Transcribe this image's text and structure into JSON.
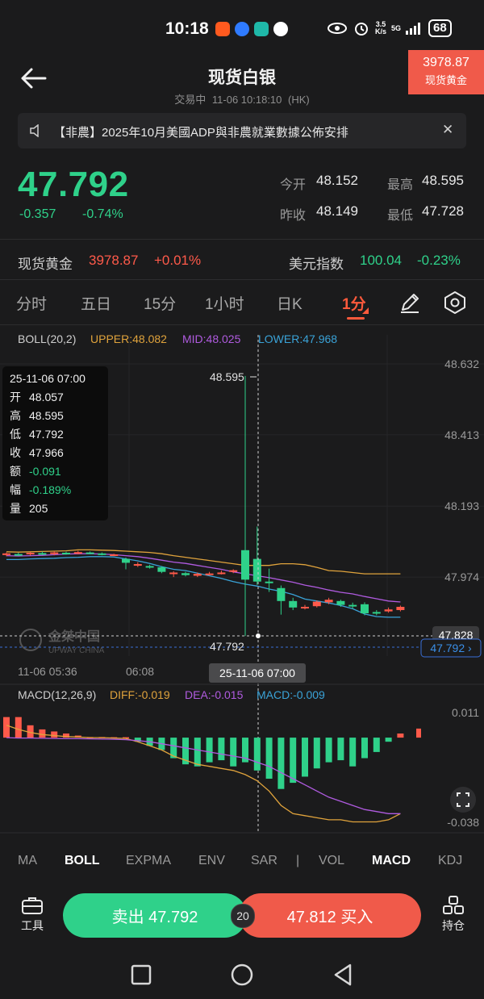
{
  "status_bar": {
    "time": "10:18",
    "net_speed_value": "3.5",
    "net_speed_unit": "K/s",
    "network": "5G",
    "battery": "68",
    "icons": [
      "eye-icon",
      "alarm-icon",
      "signal-icon"
    ]
  },
  "header": {
    "title": "现货白银",
    "trade_status": "交易中",
    "timestamp": "11-06 10:18:10",
    "zone": "(HK)",
    "gold_badge": {
      "price": "3978.87",
      "label": "现货黄金"
    }
  },
  "notice": {
    "text": "【非農】2025年10月美國ADP與非農就業數據公佈安排"
  },
  "quote": {
    "price": "47.792",
    "change": "-0.357",
    "change_pct": "-0.74%",
    "open_label": "今开",
    "open": "48.152",
    "high_label": "最高",
    "high": "48.595",
    "prev_close_label": "昨收",
    "prev_close": "48.149",
    "low_label": "最低",
    "low": "47.728"
  },
  "related": {
    "gold_label": "现货黄金",
    "gold_price": "3978.87",
    "gold_change": "+0.01%",
    "usd_label": "美元指数",
    "usd_price": "100.04",
    "usd_change": "-0.23%"
  },
  "timeframe_tabs": [
    "分时",
    "五日",
    "15分",
    "1小时",
    "日K",
    "1分"
  ],
  "active_timeframe": "1分",
  "chart_data": {
    "type": "candlestick",
    "boll": {
      "label": "BOLL(20,2)",
      "upper_label": "UPPER:48.082",
      "mid_label": "MID:48.025",
      "lower_label": "LOWER:47.968",
      "upper": [
        48.052,
        48.051,
        48.052,
        48.053,
        48.054,
        48.055,
        48.058,
        48.058,
        48.057,
        48.056,
        48.054,
        48.052,
        48.05,
        48.046,
        48.04,
        48.035,
        48.03,
        48.025,
        48.02,
        48.015,
        48.01,
        48.01,
        48.01,
        48.015,
        48.015,
        48.012,
        48.004,
        47.994,
        47.992,
        47.988,
        47.984,
        47.984,
        47.984,
        47.984
      ],
      "mid": [
        48.04,
        48.039,
        48.04,
        48.041,
        48.043,
        48.045,
        48.046,
        48.046,
        48.045,
        48.043,
        48.04,
        48.037,
        48.032,
        48.026,
        48.02,
        48.016,
        48.01,
        48.004,
        47.998,
        47.99,
        47.984,
        47.978,
        47.972,
        47.965,
        47.958,
        47.949,
        47.942,
        47.934,
        47.927,
        47.922,
        47.914,
        47.907,
        47.9,
        47.897
      ],
      "lower": [
        48.028,
        48.028,
        48.03,
        48.031,
        48.032,
        48.034,
        48.035,
        48.037,
        48.037,
        48.036,
        48.03,
        48.024,
        48.016,
        48.006,
        47.998,
        47.994,
        47.986,
        47.978,
        47.97,
        47.96,
        47.952,
        47.946,
        47.937,
        47.93,
        47.92,
        47.906,
        47.9,
        47.894,
        47.886,
        47.876,
        47.86,
        47.852,
        47.85,
        47.85
      ]
    },
    "y_ticks": [
      "48.632",
      "48.413",
      "48.193",
      "47.974"
    ],
    "ylim": [
      47.755,
      48.632
    ],
    "x_ticks": [
      "11-06 05:36",
      "06:08"
    ],
    "marker_high": "48.595",
    "marker_low": "47.792",
    "crosshair_price": "47.828",
    "current_price_tag": "47.792 ›",
    "crosshair_time": "25-11-06 07:00",
    "candles": [
      {
        "o": 48.043,
        "c": 48.047,
        "h": 48.05,
        "l": 48.038
      },
      {
        "o": 48.045,
        "c": 48.043,
        "h": 48.049,
        "l": 48.04
      },
      {
        "o": 48.044,
        "c": 48.049,
        "h": 48.052,
        "l": 48.04
      },
      {
        "o": 48.048,
        "c": 48.045,
        "h": 48.053,
        "l": 48.042
      },
      {
        "o": 48.045,
        "c": 48.05,
        "h": 48.054,
        "l": 48.041
      },
      {
        "o": 48.049,
        "c": 48.046,
        "h": 48.052,
        "l": 48.043
      },
      {
        "o": 48.047,
        "c": 48.051,
        "h": 48.055,
        "l": 48.044
      },
      {
        "o": 48.05,
        "c": 48.047,
        "h": 48.053,
        "l": 48.044
      },
      {
        "o": 48.047,
        "c": 48.045,
        "h": 48.05,
        "l": 48.041
      },
      {
        "o": 48.043,
        "c": 48.044,
        "h": 48.046,
        "l": 48.039
      },
      {
        "o": 48.03,
        "c": 48.018,
        "h": 48.034,
        "l": 47.998
      },
      {
        "o": 48.012,
        "c": 48.014,
        "h": 48.02,
        "l": 48.005
      },
      {
        "o": 48.008,
        "c": 48.006,
        "h": 48.012,
        "l": 48.0
      },
      {
        "o": 48.004,
        "c": 47.99,
        "h": 48.008,
        "l": 47.986
      },
      {
        "o": 47.986,
        "c": 47.988,
        "h": 47.992,
        "l": 47.974
      },
      {
        "o": 47.986,
        "c": 47.98,
        "h": 47.99,
        "l": 47.976
      },
      {
        "o": 47.978,
        "c": 47.984,
        "h": 47.988,
        "l": 47.974
      },
      {
        "o": 47.982,
        "c": 47.985,
        "h": 47.99,
        "l": 47.98
      },
      {
        "o": 47.984,
        "c": 47.988,
        "h": 47.994,
        "l": 47.982
      },
      {
        "o": 47.99,
        "c": 47.995,
        "h": 47.998,
        "l": 47.986
      },
      {
        "o": 48.057,
        "c": 47.966,
        "h": 48.595,
        "l": 47.792
      },
      {
        "o": 48.03,
        "c": 47.96,
        "h": 48.13,
        "l": 47.95
      },
      {
        "o": 47.96,
        "c": 47.958,
        "h": 48.0,
        "l": 47.928
      },
      {
        "o": 47.94,
        "c": 47.9,
        "h": 47.948,
        "l": 47.858
      },
      {
        "o": 47.9,
        "c": 47.88,
        "h": 47.91,
        "l": 47.872
      },
      {
        "o": 47.878,
        "c": 47.882,
        "h": 47.888,
        "l": 47.874
      },
      {
        "o": 47.884,
        "c": 47.898,
        "h": 47.902,
        "l": 47.88
      },
      {
        "o": 47.896,
        "c": 47.904,
        "h": 47.91,
        "l": 47.89
      },
      {
        "o": 47.9,
        "c": 47.888,
        "h": 47.904,
        "l": 47.882
      },
      {
        "o": 47.888,
        "c": 47.884,
        "h": 47.895,
        "l": 47.876
      },
      {
        "o": 47.89,
        "c": 47.862,
        "h": 47.896,
        "l": 47.856
      },
      {
        "o": 47.866,
        "c": 47.864,
        "h": 47.872,
        "l": 47.856
      },
      {
        "o": 47.868,
        "c": 47.874,
        "h": 47.88,
        "l": 47.864
      },
      {
        "o": 47.872,
        "c": 47.882,
        "h": 47.886,
        "l": 47.868
      }
    ],
    "tooltip": [
      {
        "label": "25-11-06 07:00",
        "value": ""
      },
      {
        "label": "开",
        "value": "48.057"
      },
      {
        "label": "高",
        "value": "48.595"
      },
      {
        "label": "低",
        "value": "47.792"
      },
      {
        "label": "收",
        "value": "47.966"
      },
      {
        "label": "额",
        "value": "-0.091"
      },
      {
        "label": "幅",
        "value": "-0.189%"
      },
      {
        "label": "量",
        "value": "205"
      }
    ],
    "watermark": "金桀中国",
    "watermark_sub": "UPWAY CHINA",
    "macd": {
      "label": "MACD(12,26,9)",
      "diff_label": "DIFF:-0.019",
      "dea_label": "DEA:-0.015",
      "macd_label": "MACD:-0.009",
      "y_ticks": [
        "0.011",
        "-0.038"
      ],
      "ylim": [
        -0.042,
        0.013
      ],
      "hist": [
        0.01,
        0.01,
        0.006,
        0.004,
        0.003,
        0.002,
        0.001,
        0.0003,
        0.0003,
        0.0002,
        0.0002,
        -0.002,
        -0.004,
        -0.006,
        -0.01,
        -0.013,
        -0.014,
        -0.012,
        -0.011,
        -0.014,
        -0.012,
        -0.016,
        -0.02,
        -0.025,
        -0.022,
        -0.019,
        -0.015,
        -0.012,
        -0.011,
        -0.014,
        -0.01,
        -0.007,
        -0.002,
        0.002
      ],
      "diff": [
        0.006,
        0.004,
        0.0025,
        0.0015,
        0.001,
        0.0005,
        0.0003,
        0.0,
        0.0,
        -0.0002,
        -0.0004,
        -0.002,
        -0.004,
        -0.006,
        -0.009,
        -0.011,
        -0.013,
        -0.014,
        -0.015,
        -0.016,
        -0.018,
        -0.021,
        -0.026,
        -0.033,
        -0.037,
        -0.038,
        -0.039,
        -0.04,
        -0.04,
        -0.041,
        -0.041,
        -0.041,
        -0.04,
        -0.037
      ],
      "dea": [
        0.0,
        -0.0002,
        -0.0002,
        -0.0003,
        -0.0004,
        -0.0005,
        -0.0005,
        -0.0006,
        -0.0007,
        -0.0008,
        -0.001,
        -0.0015,
        -0.002,
        -0.003,
        -0.004,
        -0.005,
        -0.006,
        -0.007,
        -0.008,
        -0.009,
        -0.01,
        -0.012,
        -0.014,
        -0.017,
        -0.02,
        -0.023,
        -0.026,
        -0.029,
        -0.031,
        -0.033,
        -0.035,
        -0.036,
        -0.037,
        -0.037
      ]
    }
  },
  "indicator_tabs": [
    "MA",
    "BOLL",
    "EXPMA",
    "ENV",
    "SAR",
    "|",
    "VOL",
    "MACD",
    "KDJ"
  ],
  "actions": {
    "tools_label": "工具",
    "sell_label": "卖出 47.792",
    "spread": "20",
    "buy_label": "47.812 买入",
    "positions_label": "持仓"
  },
  "colors": {
    "up": "#ff5a4a",
    "down": "#2fd18a",
    "upper": "#e0a33c",
    "mid": "#b05be0",
    "lower": "#3aa3d8"
  }
}
